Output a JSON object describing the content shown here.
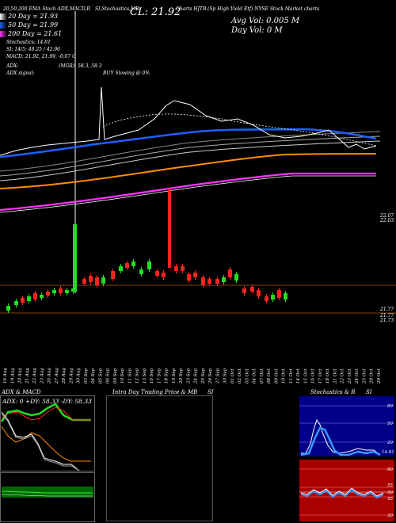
{
  "header": {
    "line1_left": "20,50,200 EMA Stoch",
    "line1_indicators": "ADX,MACD,R",
    "line1_si": "SI,Stochastics,MR",
    "line1_cl": "CL: 21.92",
    "line1_charts": "Charts HJTB",
    "line1_right": "(Sp High Yield Etf) NYSE Stock Market charts",
    "ema20": "20 Day = 21.93",
    "ema50": "50 Day = 21.99",
    "ema200": "200 Day = 21.61",
    "stochastics": "Stochastics: 14.81",
    "si": "SI: 14/5: 48.25 / 42.96",
    "macd": "MACD: 21.92, 21.99, -0.07 C",
    "adx": "ADX:",
    "adx_values": "(MGR): 58.3, 58.3",
    "adx_signal": "ADX signal:",
    "buy": "BUY Slowing @ 0%",
    "avg_vol": "Avg Vol: 0.005 M",
    "day_vol": "Day Vol: 0   M"
  },
  "right_axis": {
    "label_a": "22.07",
    "label_b": "22.03",
    "label_c": "21.77",
    "label_d": "21.77",
    "label_e": "21.73"
  },
  "dates": [
    "16 Aug",
    "19 Aug",
    "20 Aug",
    "21 Aug",
    "22 Aug",
    "23 Aug",
    "26 Aug",
    "27 Aug",
    "28 Aug",
    "29 Aug",
    "30 Aug",
    "03 Sep",
    "04 Sep",
    "05 Sep",
    "06 Sep",
    "09 Sep",
    "10 Sep",
    "11 Sep",
    "12 Sep",
    "13 Sep",
    "16 Sep",
    "17 Sep",
    "18 Sep",
    "19 Sep",
    "20 Sep",
    "23 Sep",
    "24 Sep",
    "25 Sep",
    "26 Sep",
    "27 Sep",
    "30 Sep",
    "01 Oct",
    "02 Oct",
    "03 Oct",
    "04 Oct",
    "07 Oct",
    "08 Oct",
    "09 Oct",
    "10 Oct",
    "11 Oct",
    "14 Oct",
    "15 Oct",
    "16 Oct",
    "17 Oct",
    "18 Oct",
    "21 Oct",
    "22 Oct",
    "23 Oct",
    "24 Oct",
    "25 Oct",
    "28 Oct",
    "29 Oct"
  ],
  "panels": {
    "adx_title": "ADX  & MACD",
    "adx_readout": "ADX: 0  +DY: 58.33  -DY: 58.33",
    "intraday_title": "Intra  Day Trading Price  & MR",
    "intraday_si": "SI",
    "stoch_title": "Stochastics  & R",
    "stoch_si": "SI",
    "stoch_ticks": [
      "80",
      "50",
      "20"
    ],
    "stoch_value": "14.81",
    "si_ticks": [
      "80",
      "55",
      "50",
      "45",
      "20"
    ]
  },
  "colors": {
    "ema20": "#ffffff",
    "ema50": "#1f5fff",
    "ema200_orange": "#ff8c00",
    "ema_magenta": "#ff33ff",
    "up": "#22dd22",
    "down": "#ff2222",
    "stoch_bg": "#000088",
    "si_bg": "#aa0000"
  }
}
